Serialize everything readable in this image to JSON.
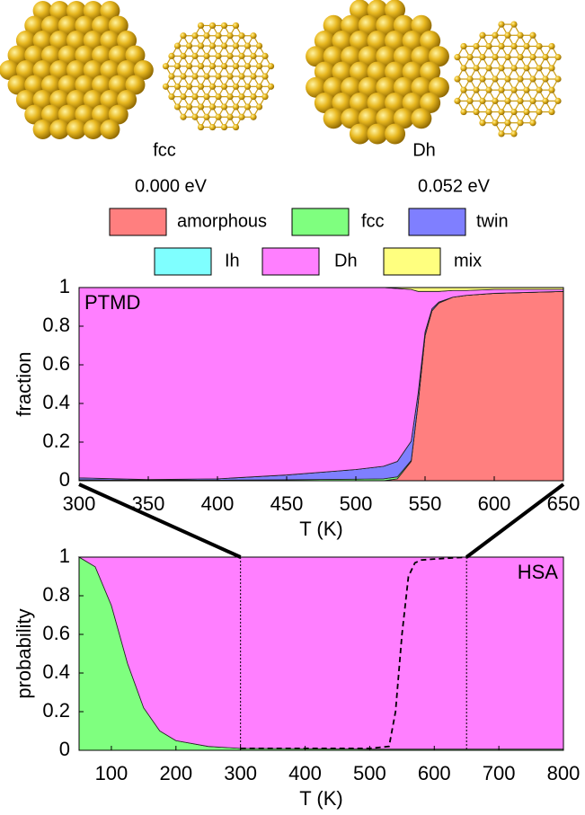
{
  "structures": [
    {
      "label": "fcc",
      "energy": "0.000  eV"
    },
    {
      "label": "Dh",
      "energy": "0.052  eV"
    }
  ],
  "chart_data": [
    {
      "type": "stacked_area",
      "annotation": "PTMD",
      "xlabel": "T (K)",
      "ylabel": "fraction",
      "x": [
        300,
        350,
        400,
        450,
        500,
        520,
        530,
        540,
        545,
        550,
        555,
        560,
        570,
        580,
        600,
        650
      ],
      "series": [
        {
          "name": "amorphous",
          "color": "#ff7f7f",
          "values": [
            0,
            0,
            0,
            0,
            0,
            0,
            0.01,
            0.1,
            0.4,
            0.75,
            0.88,
            0.92,
            0.95,
            0.96,
            0.97,
            0.98
          ]
        },
        {
          "name": "fcc",
          "color": "#7fff7f",
          "values": [
            0.005,
            0.003,
            0.003,
            0.005,
            0.008,
            0.01,
            0.01,
            0.005,
            0.003,
            0,
            0,
            0,
            0,
            0,
            0,
            0
          ]
        },
        {
          "name": "twin",
          "color": "#7f7fff",
          "values": [
            0.01,
            0.003,
            0.007,
            0.025,
            0.05,
            0.065,
            0.08,
            0.1,
            0.05,
            0.02,
            0.01,
            0.005,
            0,
            0,
            0,
            0
          ]
        },
        {
          "name": "Ih",
          "color": "#7fffff",
          "values": [
            0,
            0,
            0,
            0,
            0,
            0,
            0,
            0,
            0,
            0,
            0,
            0,
            0,
            0,
            0,
            0
          ]
        },
        {
          "name": "Dh",
          "color": "#ff7fff",
          "values": [
            0.985,
            0.994,
            0.99,
            0.97,
            0.942,
            0.925,
            0.895,
            0.785,
            0.527,
            0.21,
            0.09,
            0.055,
            0.035,
            0.025,
            0.02,
            0.01
          ]
        },
        {
          "name": "mix",
          "color": "#ffff7f",
          "values": [
            0,
            0,
            0,
            0,
            0,
            0,
            0.005,
            0.01,
            0.02,
            0.02,
            0.02,
            0.02,
            0.015,
            0.015,
            0.01,
            0.01
          ]
        }
      ],
      "xlim": [
        300,
        650
      ],
      "xticks": [
        300,
        350,
        400,
        450,
        500,
        550,
        600,
        650
      ],
      "ylim": [
        0,
        1
      ],
      "yticks": [
        0,
        0.2,
        0.4,
        0.6,
        0.8,
        1
      ]
    },
    {
      "type": "stacked_area",
      "annotation": "HSA",
      "xlabel": "T (K)",
      "ylabel": "probability",
      "x": [
        50,
        75,
        100,
        125,
        150,
        175,
        200,
        250,
        300,
        400,
        500,
        600,
        700,
        800
      ],
      "series": [
        {
          "name": "fcc",
          "values": [
            1,
            0.95,
            0.75,
            0.45,
            0.22,
            0.1,
            0.05,
            0.02,
            0.01,
            0.008,
            0.006,
            0.006,
            0.006,
            0.006
          ]
        },
        {
          "name": "Dh",
          "values": [
            0,
            0.05,
            0.25,
            0.55,
            0.78,
            0.9,
            0.95,
            0.98,
            0.99,
            0.992,
            0.994,
            0.994,
            0.994,
            0.994
          ]
        }
      ],
      "line": {
        "style": "dashed",
        "x": [
          300,
          500,
          530,
          540,
          550,
          560,
          570,
          580,
          600,
          650
        ],
        "values": [
          0.01,
          0.01,
          0.02,
          0.2,
          0.6,
          0.9,
          0.97,
          0.985,
          0.99,
          1
        ]
      },
      "xlim": [
        50,
        800
      ],
      "xticks": [
        100,
        200,
        300,
        400,
        500,
        600,
        700,
        800
      ],
      "ylim": [
        0,
        1
      ],
      "yticks": [
        0,
        0.2,
        0.4,
        0.6,
        0.8,
        1
      ]
    }
  ]
}
